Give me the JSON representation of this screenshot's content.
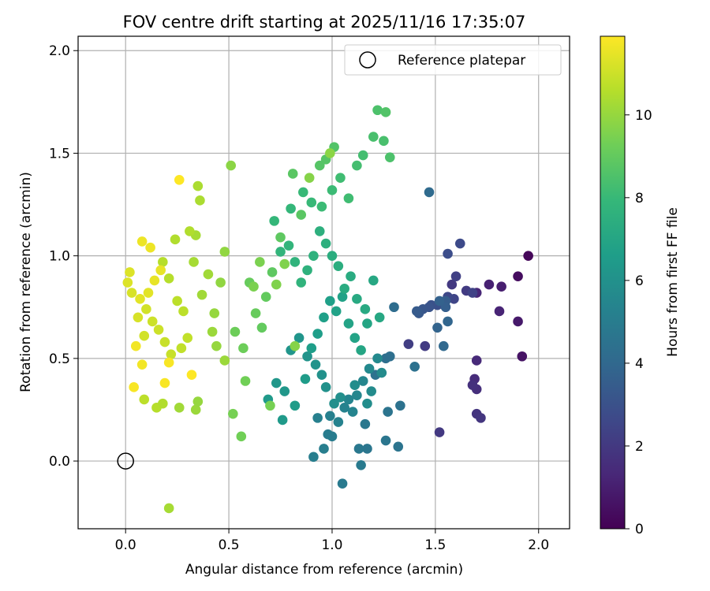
{
  "chart_data": {
    "type": "scatter",
    "title": "FOV centre drift starting at 2025/11/16 17:35:07",
    "xlabel": "Angular distance from reference (arcmin)",
    "ylabel": "Rotation from reference (arcmin)",
    "xlim": [
      -0.23,
      2.15
    ],
    "ylim": [
      -0.33,
      2.07
    ],
    "xticks": [
      "0.0",
      "0.5",
      "1.0",
      "1.5",
      "2.0"
    ],
    "yticks": [
      "0.0",
      "0.5",
      "1.0",
      "1.5",
      "2.0"
    ],
    "grid": true,
    "legend": {
      "placement": "top-right",
      "entries": [
        "Reference platepar"
      ]
    },
    "reference_point": {
      "x": 0.0,
      "y": 0.0
    },
    "colorbar": {
      "label": "Hours from first FF file",
      "range": [
        0,
        11.9
      ],
      "ticks": [
        "0",
        "2",
        "4",
        "6",
        "8",
        "10"
      ],
      "colormap": [
        "#440154",
        "#482878",
        "#3e4989",
        "#31688e",
        "#26828e",
        "#1f9e89",
        "#35b779",
        "#6ece58",
        "#b5de2b",
        "#fde725"
      ]
    },
    "series": [
      {
        "color_by": "hours",
        "points": [
          [
            1.95,
            1.0,
            0.2
          ],
          [
            1.9,
            0.9,
            0.4
          ],
          [
            1.92,
            0.51,
            0.6
          ],
          [
            1.9,
            0.68,
            0.8
          ],
          [
            1.82,
            0.85,
            1.0
          ],
          [
            1.76,
            0.86,
            1.1
          ],
          [
            1.81,
            0.73,
            1.2
          ],
          [
            1.7,
            0.82,
            1.3
          ],
          [
            1.7,
            0.49,
            1.4
          ],
          [
            1.69,
            0.4,
            1.5
          ],
          [
            1.7,
            0.35,
            1.6
          ],
          [
            1.68,
            0.37,
            1.7
          ],
          [
            1.7,
            0.23,
            1.8
          ],
          [
            1.72,
            0.21,
            1.9
          ],
          [
            1.58,
            0.86,
            2.0
          ],
          [
            1.52,
            0.14,
            2.0
          ],
          [
            1.65,
            0.83,
            2.1
          ],
          [
            1.45,
            0.56,
            2.1
          ],
          [
            1.37,
            0.57,
            2.2
          ],
          [
            1.6,
            0.9,
            2.3
          ],
          [
            1.68,
            0.82,
            2.4
          ],
          [
            1.59,
            0.79,
            2.5
          ],
          [
            1.56,
            0.8,
            2.6
          ],
          [
            1.62,
            1.06,
            2.7
          ],
          [
            1.56,
            1.01,
            2.8
          ],
          [
            1.51,
            0.76,
            2.9
          ],
          [
            1.48,
            0.76,
            3.0
          ],
          [
            1.47,
            0.75,
            3.1
          ],
          [
            1.44,
            0.74,
            3.2
          ],
          [
            1.42,
            0.72,
            3.3
          ],
          [
            1.41,
            0.73,
            3.4
          ],
          [
            1.55,
            0.78,
            3.5
          ],
          [
            1.55,
            0.75,
            3.6
          ],
          [
            1.52,
            0.78,
            3.7
          ],
          [
            1.51,
            0.65,
            3.8
          ],
          [
            1.56,
            0.68,
            3.9
          ],
          [
            1.54,
            0.56,
            4.0
          ],
          [
            1.47,
            1.31,
            4.1
          ],
          [
            1.3,
            0.75,
            4.2
          ],
          [
            1.28,
            0.51,
            4.3
          ],
          [
            1.26,
            0.5,
            4.3
          ],
          [
            1.4,
            0.46,
            4.4
          ],
          [
            1.21,
            0.42,
            4.5
          ],
          [
            1.33,
            0.27,
            4.5
          ],
          [
            1.27,
            0.24,
            4.6
          ],
          [
            1.32,
            0.07,
            4.6
          ],
          [
            1.26,
            0.1,
            4.7
          ],
          [
            1.17,
            0.06,
            4.7
          ],
          [
            1.13,
            0.06,
            4.8
          ],
          [
            1.16,
            0.18,
            4.8
          ],
          [
            1.14,
            -0.02,
            4.9
          ],
          [
            1.05,
            -0.11,
            4.9
          ],
          [
            1.0,
            0.12,
            5.0
          ],
          [
            0.98,
            0.13,
            5.0
          ],
          [
            0.96,
            0.06,
            5.1
          ],
          [
            0.91,
            0.02,
            5.1
          ],
          [
            0.93,
            0.21,
            5.2
          ],
          [
            0.99,
            0.22,
            5.2
          ],
          [
            1.03,
            0.19,
            5.3
          ],
          [
            1.06,
            0.26,
            5.3
          ],
          [
            1.08,
            0.3,
            5.4
          ],
          [
            1.1,
            0.24,
            5.4
          ],
          [
            1.12,
            0.32,
            5.5
          ],
          [
            1.15,
            0.39,
            5.5
          ],
          [
            1.18,
            0.45,
            5.6
          ],
          [
            1.22,
            0.5,
            5.6
          ],
          [
            1.24,
            0.43,
            5.7
          ],
          [
            1.19,
            0.34,
            5.7
          ],
          [
            1.17,
            0.28,
            5.8
          ],
          [
            1.11,
            0.37,
            5.8
          ],
          [
            1.04,
            0.31,
            5.9
          ],
          [
            1.01,
            0.28,
            5.9
          ],
          [
            0.97,
            0.36,
            6.0
          ],
          [
            0.95,
            0.42,
            6.0
          ],
          [
            0.92,
            0.47,
            6.1
          ],
          [
            0.88,
            0.51,
            6.1
          ],
          [
            0.84,
            0.6,
            6.2
          ],
          [
            0.8,
            0.54,
            6.2
          ],
          [
            0.77,
            0.34,
            6.3
          ],
          [
            0.73,
            0.38,
            6.3
          ],
          [
            0.76,
            0.2,
            6.4
          ],
          [
            0.69,
            0.3,
            6.4
          ],
          [
            0.82,
            0.27,
            6.5
          ],
          [
            0.87,
            0.4,
            6.5
          ],
          [
            0.9,
            0.55,
            6.6
          ],
          [
            0.93,
            0.62,
            6.6
          ],
          [
            0.96,
            0.7,
            6.7
          ],
          [
            0.99,
            0.78,
            6.7
          ],
          [
            1.02,
            0.73,
            6.8
          ],
          [
            1.05,
            0.8,
            6.8
          ],
          [
            1.08,
            0.67,
            6.9
          ],
          [
            1.11,
            0.6,
            6.9
          ],
          [
            1.14,
            0.54,
            7.0
          ],
          [
            1.17,
            0.67,
            7.0
          ],
          [
            1.2,
            0.88,
            7.1
          ],
          [
            1.23,
            0.7,
            7.1
          ],
          [
            1.16,
            0.74,
            7.2
          ],
          [
            1.12,
            0.79,
            7.2
          ],
          [
            1.09,
            0.9,
            7.3
          ],
          [
            1.06,
            0.84,
            7.3
          ],
          [
            1.03,
            0.95,
            7.4
          ],
          [
            1.0,
            1.0,
            7.4
          ],
          [
            0.97,
            1.06,
            7.5
          ],
          [
            0.94,
            1.12,
            7.5
          ],
          [
            0.91,
            1.0,
            7.6
          ],
          [
            0.88,
            0.93,
            7.6
          ],
          [
            0.85,
            0.87,
            7.7
          ],
          [
            0.82,
            0.97,
            7.7
          ],
          [
            0.79,
            1.05,
            7.8
          ],
          [
            0.75,
            1.02,
            7.8
          ],
          [
            0.72,
            1.17,
            7.9
          ],
          [
            0.8,
            1.23,
            7.9
          ],
          [
            0.86,
            1.31,
            8.0
          ],
          [
            0.9,
            1.26,
            8.0
          ],
          [
            0.95,
            1.24,
            8.1
          ],
          [
            1.0,
            1.32,
            8.1
          ],
          [
            1.04,
            1.38,
            8.2
          ],
          [
            1.08,
            1.28,
            8.2
          ],
          [
            1.12,
            1.44,
            8.3
          ],
          [
            1.15,
            1.49,
            8.3
          ],
          [
            1.2,
            1.58,
            8.4
          ],
          [
            1.25,
            1.56,
            8.4
          ],
          [
            1.28,
            1.48,
            8.5
          ],
          [
            1.22,
            1.71,
            8.5
          ],
          [
            1.26,
            1.7,
            8.6
          ],
          [
            1.01,
            1.53,
            8.6
          ],
          [
            0.97,
            1.47,
            8.7
          ],
          [
            0.94,
            1.44,
            8.7
          ],
          [
            0.81,
            1.4,
            8.8
          ],
          [
            0.85,
            1.2,
            8.8
          ],
          [
            0.75,
            1.09,
            8.9
          ],
          [
            0.71,
            0.92,
            8.9
          ],
          [
            0.68,
            0.8,
            9.0
          ],
          [
            0.66,
            0.65,
            9.0
          ],
          [
            0.63,
            0.72,
            9.1
          ],
          [
            0.6,
            0.87,
            9.1
          ],
          [
            0.57,
            0.55,
            9.2
          ],
          [
            0.53,
            0.63,
            9.2
          ],
          [
            0.58,
            0.39,
            9.3
          ],
          [
            0.56,
            0.12,
            9.3
          ],
          [
            0.52,
            0.23,
            9.4
          ],
          [
            0.7,
            0.27,
            9.4
          ],
          [
            0.62,
            0.85,
            9.5
          ],
          [
            0.65,
            0.97,
            9.5
          ],
          [
            0.73,
            0.86,
            9.6
          ],
          [
            0.77,
            0.96,
            9.6
          ],
          [
            0.82,
            0.56,
            9.7
          ],
          [
            0.89,
            1.38,
            9.7
          ],
          [
            0.99,
            1.5,
            9.8
          ],
          [
            0.51,
            1.44,
            9.8
          ],
          [
            0.48,
            1.02,
            9.9
          ],
          [
            0.46,
            0.87,
            9.9
          ],
          [
            0.43,
            0.72,
            10.0
          ],
          [
            0.44,
            0.56,
            10.0
          ],
          [
            0.48,
            0.49,
            10.1
          ],
          [
            0.42,
            0.63,
            10.1
          ],
          [
            0.4,
            0.91,
            10.2
          ],
          [
            0.37,
            0.81,
            10.2
          ],
          [
            0.34,
            1.1,
            10.3
          ],
          [
            0.33,
            0.97,
            10.3
          ],
          [
            0.36,
            1.27,
            10.4
          ],
          [
            0.35,
            1.34,
            10.4
          ],
          [
            0.31,
            1.12,
            10.5
          ],
          [
            0.24,
            1.08,
            10.5
          ],
          [
            0.18,
            0.97,
            10.6
          ],
          [
            0.21,
            0.89,
            10.6
          ],
          [
            0.25,
            0.78,
            10.7
          ],
          [
            0.28,
            0.73,
            10.7
          ],
          [
            0.3,
            0.6,
            10.8
          ],
          [
            0.27,
            0.55,
            10.8
          ],
          [
            0.22,
            0.52,
            10.9
          ],
          [
            0.19,
            0.58,
            10.9
          ],
          [
            0.16,
            0.64,
            11.0
          ],
          [
            0.13,
            0.68,
            11.0
          ],
          [
            0.1,
            0.74,
            11.1
          ],
          [
            0.09,
            0.61,
            11.1
          ],
          [
            0.06,
            0.7,
            11.2
          ],
          [
            0.03,
            0.82,
            11.2
          ],
          [
            0.01,
            0.87,
            11.3
          ],
          [
            0.02,
            0.92,
            11.3
          ],
          [
            0.07,
            0.79,
            11.4
          ],
          [
            0.11,
            0.82,
            11.4
          ],
          [
            0.14,
            0.88,
            11.5
          ],
          [
            0.17,
            0.93,
            11.5
          ],
          [
            0.12,
            1.04,
            11.6
          ],
          [
            0.08,
            1.07,
            11.6
          ],
          [
            0.05,
            0.56,
            11.7
          ],
          [
            0.08,
            0.47,
            11.7
          ],
          [
            0.04,
            0.36,
            11.8
          ],
          [
            0.21,
            0.48,
            11.8
          ],
          [
            0.19,
            0.38,
            11.8
          ],
          [
            0.32,
            0.42,
            11.9
          ],
          [
            0.26,
            1.37,
            11.9
          ],
          [
            0.21,
            -0.23,
            10.3
          ],
          [
            0.26,
            0.26,
            10.2
          ],
          [
            0.34,
            0.25,
            10.1
          ],
          [
            0.35,
            0.29,
            10.0
          ],
          [
            0.15,
            0.26,
            10.6
          ],
          [
            0.18,
            0.28,
            10.5
          ],
          [
            0.09,
            0.3,
            10.7
          ]
        ]
      }
    ]
  }
}
